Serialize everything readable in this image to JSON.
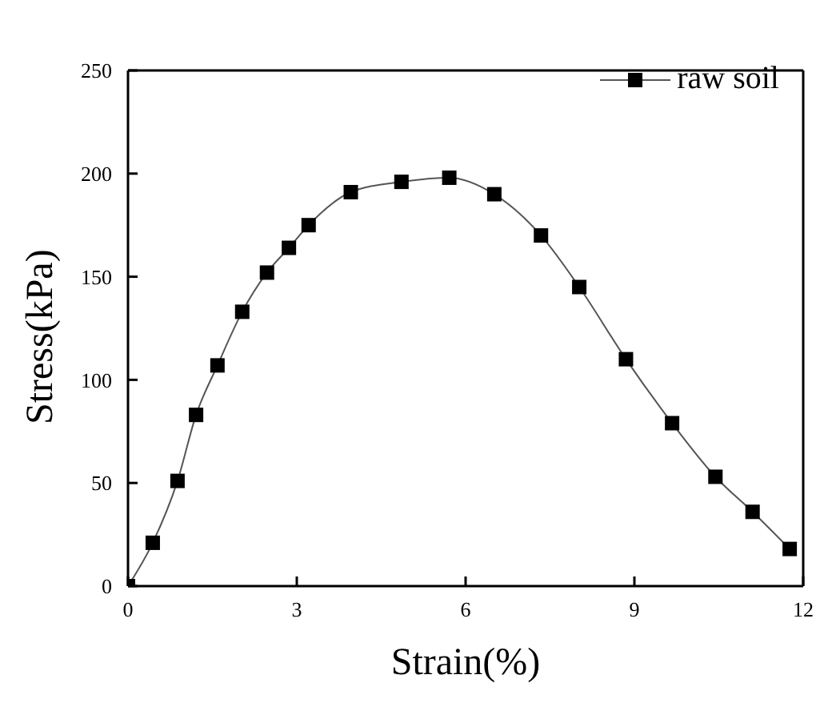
{
  "chart_data": {
    "type": "line",
    "xlabel": "Strain(%)",
    "ylabel": "Stress(kPa)",
    "xlim": [
      0,
      12
    ],
    "xticks": [
      0,
      3,
      6,
      9,
      12
    ],
    "ylim": [
      0,
      250
    ],
    "yticks": [
      0,
      50,
      100,
      150,
      200,
      250
    ],
    "grid": false,
    "legend": "top right",
    "marker": "square",
    "line_style": "solid",
    "series": [
      {
        "name": "raw soil",
        "color": "#000000",
        "x": [
          0,
          0.44,
          0.88,
          1.21,
          1.59,
          2.03,
          2.47,
          2.86,
          3.21,
          3.96,
          4.86,
          5.71,
          6.51,
          7.34,
          8.02,
          8.85,
          9.67,
          10.44,
          11.1,
          11.76
        ],
        "values": [
          0,
          21,
          51,
          83,
          107,
          133,
          152,
          164,
          175,
          191,
          196,
          198,
          190,
          170,
          145,
          110,
          79,
          53,
          36,
          18
        ]
      }
    ]
  }
}
